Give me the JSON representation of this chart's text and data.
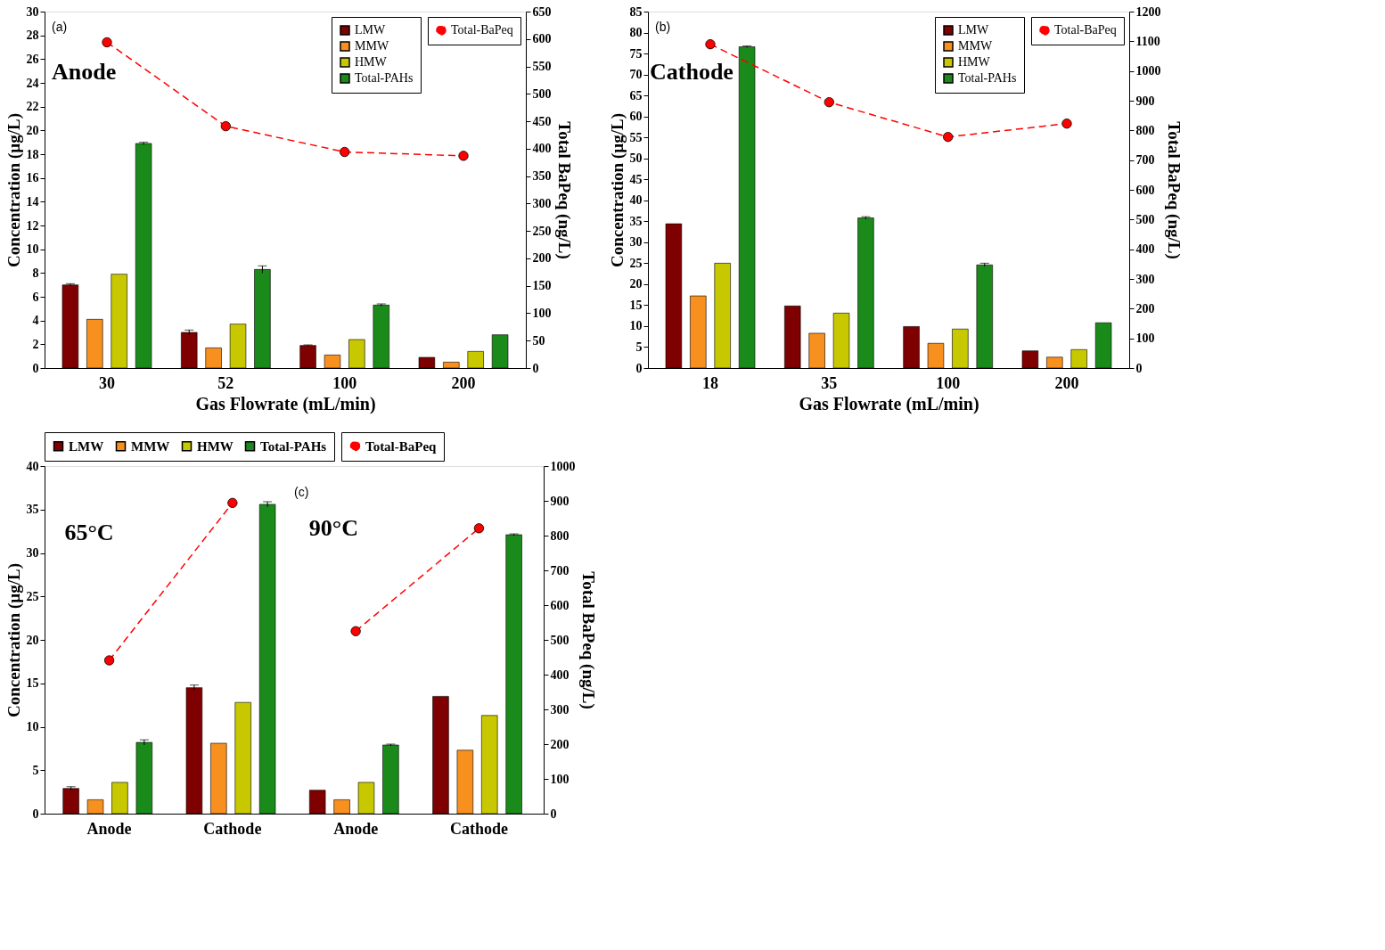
{
  "chart_data": [
    {
      "type": "bar",
      "categories": [
        "30",
        "52",
        "100",
        "200"
      ],
      "xlabel": "Gas Flowrate (mL/min)",
      "ylabel": "Concentration (µg/L)",
      "y2label": "Total BaPeq (ng/L)",
      "annotations": [
        "(a)",
        "Anode"
      ],
      "ylim": [
        0,
        30
      ],
      "yticks": [
        0,
        2,
        4,
        6,
        8,
        10,
        12,
        14,
        16,
        18,
        20,
        22,
        24,
        26,
        28,
        30
      ],
      "y2lim": [
        0,
        650
      ],
      "y2ticks": [
        0,
        50,
        100,
        150,
        200,
        250,
        300,
        350,
        400,
        450,
        500,
        550,
        600,
        650
      ],
      "legend": "top right",
      "line_style": "dashed",
      "marker": "circle",
      "series": [
        {
          "name": "LMW",
          "color": "#7f0000",
          "values": [
            7.0,
            3.0,
            1.9,
            0.9
          ],
          "errors": [
            0.1,
            0.2,
            0.05,
            null
          ]
        },
        {
          "name": "MMW",
          "color": "#f7901e",
          "values": [
            4.1,
            1.7,
            1.1,
            0.5
          ]
        },
        {
          "name": "HMW",
          "color": "#c8c800",
          "values": [
            7.9,
            3.7,
            2.4,
            1.4
          ]
        },
        {
          "name": "Total-PAHs",
          "color": "#1a8a1a",
          "values": [
            18.9,
            8.3,
            5.3,
            2.8
          ],
          "errors": [
            0.1,
            0.3,
            0.1,
            null
          ]
        },
        {
          "name": "Total-BaPeq",
          "color": "#ff0000",
          "type": "line",
          "axis": "y2",
          "values": [
            594,
            441,
            394,
            387
          ]
        }
      ]
    },
    {
      "type": "bar",
      "categories": [
        "18",
        "35",
        "100",
        "200"
      ],
      "xlabel": "Gas Flowrate (mL/min)",
      "ylabel": "Concentration (µg/L)",
      "y2label": "Total BaPeq (ng/L)",
      "annotations": [
        "(b)",
        "Cathode"
      ],
      "ylim": [
        0,
        85
      ],
      "yticks": [
        0,
        5,
        10,
        15,
        20,
        25,
        30,
        35,
        40,
        45,
        50,
        55,
        60,
        65,
        70,
        75,
        80,
        85
      ],
      "y2lim": [
        0,
        1200
      ],
      "y2ticks": [
        0,
        100,
        200,
        300,
        400,
        500,
        600,
        700,
        800,
        900,
        1000,
        1100,
        1200
      ],
      "legend": "top right",
      "line_style": "dashed",
      "marker": "circle",
      "series": [
        {
          "name": "LMW",
          "color": "#7f0000",
          "values": [
            34.4,
            14.8,
            9.9,
            4.1
          ]
        },
        {
          "name": "MMW",
          "color": "#f7901e",
          "values": [
            17.2,
            8.3,
            5.9,
            2.6
          ]
        },
        {
          "name": "HMW",
          "color": "#c8c800",
          "values": [
            25.0,
            13.1,
            9.3,
            4.4
          ]
        },
        {
          "name": "Total-PAHs",
          "color": "#1a8a1a",
          "values": [
            76.6,
            35.8,
            24.6,
            10.8
          ],
          "errors": [
            0.2,
            0.3,
            0.4,
            null
          ]
        },
        {
          "name": "Total-BaPeq",
          "color": "#ff0000",
          "type": "line",
          "axis": "y2",
          "values": [
            1090,
            895,
            778,
            823
          ]
        }
      ]
    },
    {
      "type": "bar",
      "categories": [
        "Anode",
        "Cathode",
        "Anode",
        "Cathode"
      ],
      "ylabel": "Concentration (µg/L)",
      "y2label": "Total BaPeq (ng/L)",
      "annotations": [
        "(c)",
        "65°C",
        "90°C"
      ],
      "ylim": [
        0,
        40
      ],
      "yticks": [
        0,
        5,
        10,
        15,
        20,
        25,
        30,
        35,
        40
      ],
      "y2lim": [
        0,
        1000
      ],
      "y2ticks": [
        0,
        100,
        200,
        300,
        400,
        500,
        600,
        700,
        800,
        900,
        1000
      ],
      "legend": "top",
      "line_style": "dashed",
      "marker": "circle",
      "series": [
        {
          "name": "LMW",
          "color": "#7f0000",
          "values": [
            2.9,
            14.5,
            2.7,
            13.5
          ],
          "errors": [
            0.2,
            0.3,
            null,
            null
          ]
        },
        {
          "name": "MMW",
          "color": "#f7901e",
          "values": [
            1.6,
            8.1,
            1.6,
            7.3
          ]
        },
        {
          "name": "HMW",
          "color": "#c8c800",
          "values": [
            3.6,
            12.8,
            3.6,
            11.3
          ]
        },
        {
          "name": "Total-PAHs",
          "color": "#1a8a1a",
          "values": [
            8.2,
            35.6,
            7.9,
            32.1
          ],
          "errors": [
            0.3,
            0.3,
            0.1,
            0.1
          ]
        },
        {
          "name": "Total-BaPeq",
          "color": "#ff0000",
          "type": "line",
          "axis": "y2",
          "values": [
            441,
            894,
            null,
            null
          ]
        },
        {
          "color": "#ff0000",
          "type": "line",
          "axis": "y2",
          "values": [
            null,
            null,
            525,
            821
          ]
        }
      ]
    }
  ]
}
